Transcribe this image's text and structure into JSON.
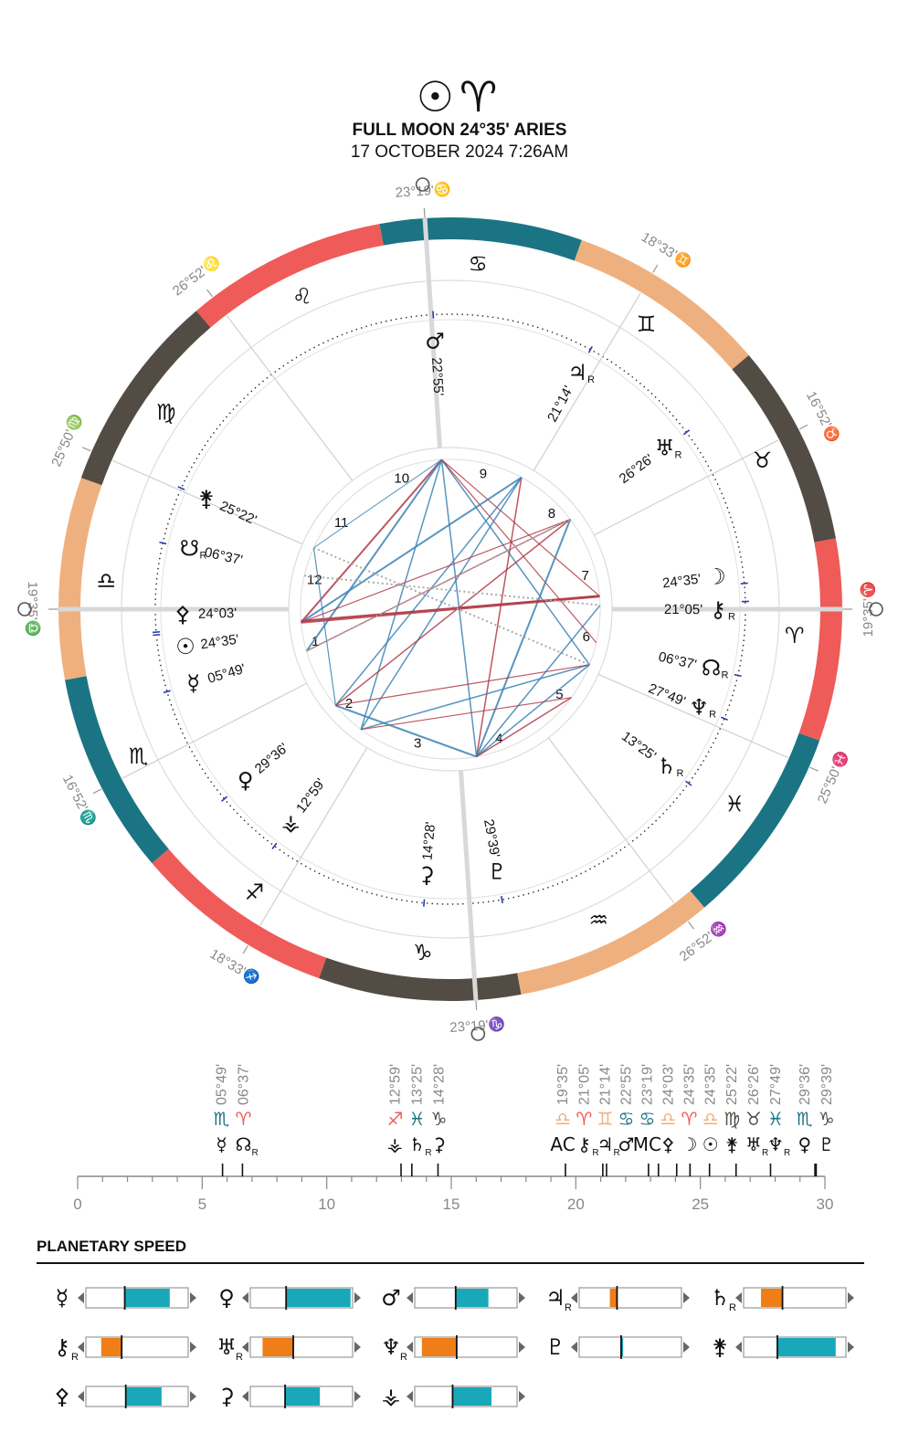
{
  "header": {
    "glyphs": "☉♈",
    "title": "FULL MOON  24°35' ARIES",
    "subtitle": "17 OCTOBER 2024 7:26AM"
  },
  "colors": {
    "fire": "#ef5b58",
    "water": "#1b7483",
    "air": "#efb07f",
    "earth": "#534c44",
    "aspect_red": "#b23a48",
    "aspect_blue": "#3b82b4",
    "speed_fill_teal": "#19a8b9",
    "speed_fill_orange": "#ef7e16"
  },
  "wheel": {
    "ascendant_deg": 199.583,
    "signs": [
      {
        "glyph": "♈",
        "element": "fire"
      },
      {
        "glyph": "♉",
        "element": "earth"
      },
      {
        "glyph": "♊",
        "element": "air"
      },
      {
        "glyph": "♋",
        "element": "water"
      },
      {
        "glyph": "♌",
        "element": "fire"
      },
      {
        "glyph": "♍",
        "element": "earth"
      },
      {
        "glyph": "♎",
        "element": "air"
      },
      {
        "glyph": "♏",
        "element": "water"
      },
      {
        "glyph": "♐",
        "element": "fire"
      },
      {
        "glyph": "♑",
        "element": "earth"
      },
      {
        "glyph": "♒",
        "element": "air"
      },
      {
        "glyph": "♓",
        "element": "water"
      }
    ],
    "house_cusps": [
      {
        "n": "1",
        "deg": 199.583,
        "label": "19°35'♎"
      },
      {
        "n": "2",
        "deg": 226.867,
        "label": "16°52'♏"
      },
      {
        "n": "3",
        "deg": 258.55,
        "label": "18°33'♐"
      },
      {
        "n": "4",
        "deg": 293.317,
        "label": "23°19'♑"
      },
      {
        "n": "5",
        "deg": 326.867,
        "label": "26°52'♒"
      },
      {
        "n": "6",
        "deg": 355.833,
        "label": "25°50'♓"
      },
      {
        "n": "7",
        "deg": 19.583,
        "label": "19°35'♈"
      },
      {
        "n": "8",
        "deg": 46.867,
        "label": "16°52'♉"
      },
      {
        "n": "9",
        "deg": 78.55,
        "label": "18°33'♊"
      },
      {
        "n": "10",
        "deg": 113.317,
        "label": "23°19'♋"
      },
      {
        "n": "11",
        "deg": 146.867,
        "label": "26°52'♌"
      },
      {
        "n": "12",
        "deg": 175.833,
        "label": "25°50'♍"
      }
    ],
    "planets": [
      {
        "name": "Moon",
        "glyph": "☽",
        "deg": 24.583,
        "label": "24°35'",
        "retro": false
      },
      {
        "name": "Chiron",
        "glyph": "⚷",
        "deg": 21.083,
        "label": "21°05'",
        "retro": true
      },
      {
        "name": "North Node",
        "glyph": "☊",
        "deg": 6.617,
        "label": "06°37'",
        "retro": true
      },
      {
        "name": "Neptune",
        "glyph": "♆",
        "deg": 357.817,
        "label": "27°49'",
        "retro": true
      },
      {
        "name": "Saturn",
        "glyph": "♄",
        "deg": 343.417,
        "label": "13°25'",
        "retro": true
      },
      {
        "name": "Pluto",
        "glyph": "♇",
        "deg": 299.65,
        "label": "29°39'",
        "retro": false
      },
      {
        "name": "Ceres",
        "glyph": "⚳",
        "deg": 284.467,
        "label": "14°28'",
        "retro": false
      },
      {
        "name": "Vesta",
        "glyph": "⚶",
        "deg": 252.983,
        "label": "12°59'",
        "retro": false
      },
      {
        "name": "Venus",
        "glyph": "♀",
        "deg": 239.6,
        "label": "29°36'",
        "retro": false
      },
      {
        "name": "Mercury",
        "glyph": "☿",
        "deg": 215.817,
        "label": "05°49'",
        "retro": false
      },
      {
        "name": "Sun",
        "glyph": "☉",
        "deg": 204.583,
        "label": "24°35'",
        "retro": false
      },
      {
        "name": "Pallas",
        "glyph": "⚴",
        "deg": 204.05,
        "label": "24°03'",
        "retro": false
      },
      {
        "name": "South Node",
        "glyph": "☋",
        "deg": 186.617,
        "label": "06°37'",
        "retro": true
      },
      {
        "name": "Juno",
        "glyph": "⚵",
        "deg": 175.367,
        "label": "25°22'",
        "retro": false
      },
      {
        "name": "Mars",
        "glyph": "♂",
        "deg": 112.917,
        "label": "22°55'",
        "retro": false
      },
      {
        "name": "Jupiter",
        "glyph": "♃",
        "deg": 81.233,
        "label": "21°14'",
        "retro": true
      },
      {
        "name": "Uranus",
        "glyph": "♅",
        "deg": 56.433,
        "label": "26°26'",
        "retro": true
      }
    ]
  },
  "positions_scale": {
    "ticks": [
      "0",
      "5",
      "10",
      "15",
      "20",
      "25",
      "30"
    ],
    "entries": [
      {
        "deg": "05°49'",
        "val": 5.817,
        "sign": "♏",
        "signColor": "water",
        "glyph": "☿",
        "retro": false
      },
      {
        "deg": "06°37'",
        "val": 6.617,
        "sign": "♈",
        "signColor": "fire",
        "glyph": "☊",
        "retro": true
      },
      {
        "deg": "12°59'",
        "val": 12.983,
        "sign": "♐",
        "signColor": "fire",
        "glyph": "⚶",
        "retro": false
      },
      {
        "deg": "13°25'",
        "val": 13.417,
        "sign": "♓",
        "signColor": "water",
        "glyph": "♄",
        "retro": true
      },
      {
        "deg": "14°28'",
        "val": 14.467,
        "sign": "♑",
        "signColor": "earth",
        "glyph": "⚳",
        "retro": false
      },
      {
        "deg": "19°35'",
        "val": 19.583,
        "sign": "♎",
        "signColor": "air",
        "glyph": "AC",
        "retro": false
      },
      {
        "deg": "21°05'",
        "val": 21.083,
        "sign": "♈",
        "signColor": "fire",
        "glyph": "⚷",
        "retro": true
      },
      {
        "deg": "21°14'",
        "val": 21.233,
        "sign": "♊",
        "signColor": "air",
        "glyph": "♃",
        "retro": true
      },
      {
        "deg": "22°55'",
        "val": 22.917,
        "sign": "♋",
        "signColor": "water",
        "glyph": "♂",
        "retro": false
      },
      {
        "deg": "23°19'",
        "val": 23.317,
        "sign": "♋",
        "signColor": "water",
        "glyph": "MC",
        "retro": false
      },
      {
        "deg": "24°03'",
        "val": 24.05,
        "sign": "♎",
        "signColor": "air",
        "glyph": "⚴",
        "retro": false
      },
      {
        "deg": "24°35'",
        "val": 24.583,
        "sign": "♈",
        "signColor": "fire",
        "glyph": "☽",
        "retro": false
      },
      {
        "deg": "24°35'",
        "val": 24.583,
        "sign": "♎",
        "signColor": "air",
        "glyph": "☉",
        "retro": false
      },
      {
        "deg": "25°22'",
        "val": 25.367,
        "sign": "♍",
        "signColor": "earth",
        "glyph": "⚵",
        "retro": false
      },
      {
        "deg": "26°26'",
        "val": 26.433,
        "sign": "♉",
        "signColor": "earth",
        "glyph": "♅",
        "retro": true
      },
      {
        "deg": "27°49'",
        "val": 27.817,
        "sign": "♓",
        "signColor": "water",
        "glyph": "♆",
        "retro": true
      },
      {
        "deg": "29°36'",
        "val": 29.6,
        "sign": "♏",
        "signColor": "water",
        "glyph": "♀",
        "retro": false
      },
      {
        "deg": "29°39'",
        "val": 29.65,
        "sign": "♑",
        "signColor": "earth",
        "glyph": "♇",
        "retro": false
      }
    ]
  },
  "planetary_speed": {
    "title": "PLANETARY SPEED",
    "items": [
      {
        "glyph": "☿",
        "retro": false,
        "fill": "teal",
        "from": 0.38,
        "to": 0.82,
        "mark": 0.38
      },
      {
        "glyph": "♀",
        "retro": false,
        "fill": "teal",
        "from": 0.35,
        "to": 0.98,
        "mark": 0.35
      },
      {
        "glyph": "♂",
        "retro": false,
        "fill": "teal",
        "from": 0.4,
        "to": 0.72,
        "mark": 0.4
      },
      {
        "glyph": "♃",
        "retro": true,
        "fill": "orange",
        "from": 0.3,
        "to": 0.37,
        "mark": 0.37
      },
      {
        "glyph": "♄",
        "retro": true,
        "fill": "orange",
        "from": 0.17,
        "to": 0.38,
        "mark": 0.38
      },
      {
        "glyph": "⚷",
        "retro": true,
        "fill": "orange",
        "from": 0.15,
        "to": 0.35,
        "mark": 0.35
      },
      {
        "glyph": "♅",
        "retro": true,
        "fill": "orange",
        "from": 0.12,
        "to": 0.42,
        "mark": 0.42
      },
      {
        "glyph": "♆",
        "retro": true,
        "fill": "orange",
        "from": 0.07,
        "to": 0.41,
        "mark": 0.41
      },
      {
        "glyph": "♇",
        "retro": false,
        "fill": "teal",
        "from": 0.41,
        "to": 0.43,
        "mark": 0.41
      },
      {
        "glyph": "⚵",
        "retro": false,
        "fill": "teal",
        "from": 0.33,
        "to": 0.9,
        "mark": 0.33
      },
      {
        "glyph": "⚴",
        "retro": false,
        "fill": "teal",
        "from": 0.39,
        "to": 0.74,
        "mark": 0.39
      },
      {
        "glyph": "⚳",
        "retro": false,
        "fill": "teal",
        "from": 0.34,
        "to": 0.68,
        "mark": 0.34
      },
      {
        "glyph": "⚶",
        "retro": false,
        "fill": "teal",
        "from": 0.37,
        "to": 0.75,
        "mark": 0.37
      }
    ]
  },
  "retro_marker": "R"
}
